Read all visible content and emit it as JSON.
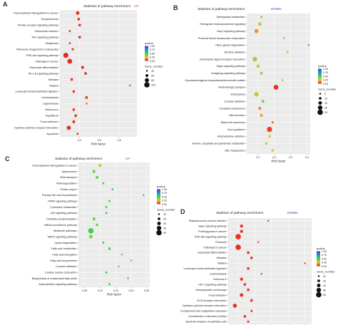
{
  "chart_data": [
    {
      "panel_label": "A",
      "type": "scatter",
      "title": "Statistics of pathway enrichment",
      "tag": "UP",
      "tag_color": "#e53935",
      "xlabel": "Rich factor",
      "xlim": [
        0.0,
        0.78
      ],
      "xticks": [
        0.2,
        0.4,
        0.6
      ],
      "xtick_labels": [
        "0.2",
        "0.4",
        "0.6"
      ],
      "color_legend_title": "qvalue",
      "color_legend_ticks": [
        "1.00",
        "0.75",
        "0.50",
        "0.25",
        "0.00"
      ],
      "size_legend_title": "Gene_number",
      "size_legend_values": [
        40,
        60,
        80,
        100
      ],
      "size_range": [
        40,
        100
      ],
      "categories": [
        "Transcriptional misregulation in cancer",
        "Toxoplasmosis",
        "Toll-like receptor signaling pathway",
        "Salmonella infection",
        "TNF signaling pathway",
        "Shigellosis",
        "Ribosome biogenesis in eukaryotes",
        "PI3K-Akt signaling pathway",
        "Pathways in cancer",
        "Osteoclast differentiation",
        "NF-κ B signaling pathway",
        "Measles",
        "Malaria",
        "Leukocyte transendothelial migration",
        "Leishmaniasis",
        "Legionellosis",
        "Influenza A",
        "Hepatitis B",
        "Focal adhesion",
        "Cytokine-cytokine receptor interaction",
        "Apoptosis"
      ],
      "x": [
        0.18,
        0.19,
        0.2,
        0.1,
        0.2,
        0.1,
        0.13,
        0.06,
        0.1,
        0.23,
        0.26,
        0.12,
        0.71,
        0.14,
        0.27,
        0.27,
        0.14,
        0.16,
        0.14,
        0.09,
        0.18
      ],
      "gene_number": [
        70,
        55,
        55,
        45,
        55,
        45,
        50,
        95,
        90,
        60,
        55,
        55,
        38,
        55,
        55,
        40,
        55,
        55,
        60,
        80,
        45
      ],
      "qvalue": [
        0.02,
        0.02,
        0.02,
        0.03,
        0.02,
        0.03,
        0.04,
        0.01,
        0.01,
        0.02,
        0.02,
        0.03,
        0.05,
        0.03,
        0.02,
        0.05,
        0.03,
        0.02,
        0.02,
        0.01,
        0.03
      ]
    },
    {
      "panel_label": "B",
      "type": "scatter",
      "title": "Statistics of pathway enrichment",
      "tag": "DOWN",
      "tag_color": "#3949ab",
      "xlabel": "Rich factor",
      "xlim": [
        0.03,
        0.42
      ],
      "xticks": [
        0.1,
        0.2,
        0.3,
        0.4
      ],
      "xtick_labels": [
        "0.1",
        "0.2",
        "0.3",
        "0.4"
      ],
      "color_legend_title": "qvalue",
      "color_legend_ticks": [
        "1.00",
        "0.75",
        "0.50",
        "0.25",
        "0.00"
      ],
      "size_legend_title": "Gene_number",
      "size_legend_values": [
        5,
        10,
        15,
        20,
        25
      ],
      "size_range": [
        5,
        25
      ],
      "categories": [
        "Sphingolipid metabolism",
        "Retrograde endocannabinoid signaling",
        "Rap1 signaling pathway",
        "Proximal tubule bicarbonate reclamation",
        "Other glycan degradation",
        "Nicotine addiction",
        "Neuroactive ligand-receptor interaction",
        "Hippo signaling pathway",
        "Hedgehog signaling pathway",
        "Glycosaminoglycan biosynthesis/chondroitin sulfate",
        "Glutamatergic synapse",
        "Endocytosis",
        "Cocaine addiction",
        "Circadian entrainment",
        "Bile secretion",
        "Basal cell carcinoma",
        "Axon guidance",
        "Amphetamine addiction",
        "Alanine, aspartate and glutamate metabolism",
        "ABC transporters"
      ],
      "x": [
        0.12,
        0.11,
        0.09,
        0.26,
        0.41,
        0.28,
        0.08,
        0.1,
        0.12,
        0.25,
        0.21,
        0.09,
        0.13,
        0.11,
        0.12,
        0.19,
        0.17,
        0.17,
        0.15,
        0.19
      ],
      "gene_number": [
        8,
        14,
        18,
        4,
        5,
        9,
        20,
        13,
        10,
        5,
        22,
        20,
        10,
        11,
        12,
        9,
        24,
        10,
        9,
        10
      ],
      "qvalue": [
        0.35,
        0.3,
        0.18,
        0.5,
        0.1,
        0.25,
        0.35,
        0.3,
        0.35,
        0.45,
        0.02,
        0.3,
        0.45,
        0.15,
        0.2,
        0.15,
        0.05,
        0.25,
        0.3,
        0.25
      ]
    },
    {
      "panel_label": "C",
      "type": "scatter",
      "title": "Statistics of pathway enrichment",
      "tag": "UP",
      "tag_color": "#e53935",
      "xlabel": "Rich factor",
      "xlim": [
        0.03,
        0.26
      ],
      "xticks": [
        0.05,
        0.1,
        0.15,
        0.2,
        0.25
      ],
      "xtick_labels": [
        "0.05",
        "0.10",
        "0.15",
        "0.20",
        "0.25"
      ],
      "color_legend_title": "qvalue",
      "color_legend_ticks": [
        "1.00",
        "0.75",
        "0.50",
        "0.25",
        "0.00"
      ],
      "size_legend_title": "Gene_number",
      "size_legend_values": [
        20,
        25,
        30,
        35,
        40
      ],
      "size_range": [
        20,
        40
      ],
      "categories": [
        "Transcriptional misregulation in cancer",
        "Spliceosome",
        "RNA transport",
        "RNA degradation",
        "Protein export",
        "Primary bile acid biosynthesis",
        "PPAR signaling pathway",
        "Pyrimidine metabolism",
        "p53 signaling pathway",
        "Oxidative phosphorylation",
        "mRNA surveillance pathway",
        "Metabolic pathways",
        "MAPK signaling pathway",
        "Lysine degradation",
        "Fatty acid metabolism",
        "Fatty acid elongation",
        "Fatty acid biosynthesis",
        "Cocaine addiction",
        "Cardiac muscle contraction",
        "Biosynthesis of unsaturated fatty acids",
        "Adipocytokine signaling pathway"
      ],
      "x": [
        0.1,
        0.08,
        0.09,
        0.11,
        0.14,
        0.24,
        0.13,
        0.12,
        0.12,
        0.08,
        0.09,
        0.07,
        0.07,
        0.11,
        0.13,
        0.17,
        0.2,
        0.16,
        0.12,
        0.19,
        0.13
      ],
      "gene_number": [
        28,
        26,
        26,
        22,
        21,
        20,
        22,
        22,
        22,
        26,
        24,
        40,
        30,
        22,
        24,
        20,
        20,
        20,
        22,
        20,
        22
      ],
      "qvalue": [
        0.3,
        0.45,
        0.45,
        0.5,
        0.55,
        0.6,
        0.5,
        0.5,
        0.5,
        0.45,
        0.45,
        0.5,
        0.4,
        0.5,
        0.5,
        0.55,
        0.55,
        0.5,
        0.5,
        0.55,
        0.5
      ]
    },
    {
      "panel_label": "D",
      "type": "scatter",
      "title": "Statistics of pathway enrichment",
      "tag": "DOWN",
      "tag_color": "#3949ab",
      "xlabel": "Rich factor",
      "xlim": [
        0.17,
        0.42
      ],
      "xticks": [
        0.2,
        0.25,
        0.3,
        0.35,
        0.4
      ],
      "xtick_labels": [
        "0.20",
        "0.25",
        "0.30",
        "0.35",
        "0.40"
      ],
      "color_legend_title": "qvalue",
      "color_legend_ticks": [
        "1.00",
        "0.75",
        "0.50",
        "0.25",
        "0.00"
      ],
      "size_legend_title": "Gene_number",
      "size_legend_values": [
        20,
        30,
        40,
        50,
        60
      ],
      "size_range": [
        20,
        60
      ],
      "categories": [
        "Staphylococcus aureus infection",
        "Rap1 signaling pathway",
        "Proteoglycans in cancer",
        "PI3K-Akt signaling pathway",
        "Pertussis",
        "Pathways in cancer",
        "Osteoclast differentiation",
        "Measles",
        "Malaria",
        "Leukocyte transendothelial migration",
        "Leishmaniasis",
        "Influenza A",
        "HIF-1 signaling pathway",
        "Hematopoietic cell lineage",
        "Focal adhesion",
        "ECM-receptor interaction",
        "Cytokine-cytokine receptor interaction",
        "Complement and coagulation cascades",
        "Cell adhesion molecules (CAMs)",
        "Bacterial invasion of epithelial cells"
      ],
      "x": [
        0.29,
        0.21,
        0.21,
        0.2,
        0.26,
        0.2,
        0.23,
        0.24,
        0.4,
        0.23,
        0.27,
        0.21,
        0.22,
        0.23,
        0.21,
        0.24,
        0.19,
        0.24,
        0.22,
        0.23
      ],
      "gene_number": [
        20,
        35,
        35,
        60,
        20,
        60,
        30,
        30,
        20,
        30,
        20,
        35,
        30,
        30,
        40,
        30,
        45,
        25,
        30,
        25
      ],
      "qvalue": [
        0.85,
        0.03,
        0.03,
        0.02,
        0.03,
        0.02,
        0.03,
        0.03,
        0.05,
        0.03,
        0.03,
        0.03,
        0.03,
        0.03,
        0.02,
        0.03,
        0.02,
        0.03,
        0.03,
        0.03
      ]
    }
  ]
}
